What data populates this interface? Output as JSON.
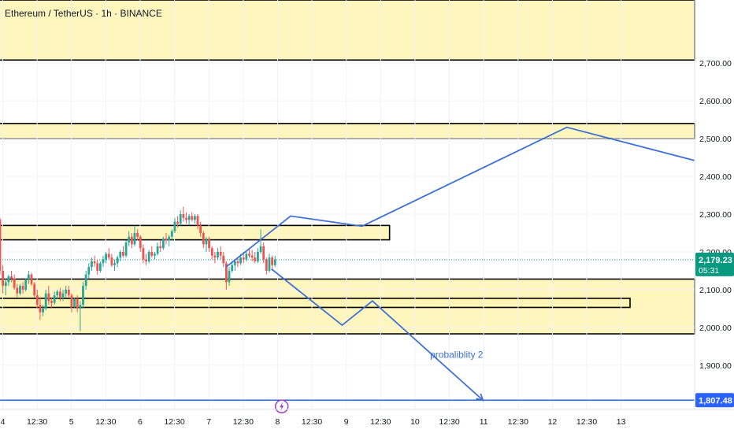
{
  "header": {
    "title": "Ethereum / TetherUS · 1h · BINANCE"
  },
  "chart_data": {
    "type": "candlestick",
    "title": "Ethereum / TetherUS · 1h · BINANCE",
    "symbol": "Ethereum / TetherUS",
    "interval": "1h",
    "exchange": "BINANCE",
    "ylim": [
      1783,
      2867
    ],
    "y_ticks": [
      {
        "value": 2700,
        "label": "2,700.00"
      },
      {
        "value": 2600,
        "label": "2,600.00"
      },
      {
        "value": 2500,
        "label": "2,500.00"
      },
      {
        "value": 2400,
        "label": "2,400.00"
      },
      {
        "value": 2300,
        "label": "2,300.00"
      },
      {
        "value": 2200,
        "label": "2,200.00"
      },
      {
        "value": 2100,
        "label": "2,100.00"
      },
      {
        "value": 2000,
        "label": "2,000.00"
      },
      {
        "value": 1900,
        "label": "1,900.00"
      }
    ],
    "x_ticks": [
      {
        "day": 4.0,
        "label": "4"
      },
      {
        "day": 4.5,
        "label": "12:30"
      },
      {
        "day": 5.0,
        "label": "5"
      },
      {
        "day": 5.5,
        "label": "12:30"
      },
      {
        "day": 6.0,
        "label": "6"
      },
      {
        "day": 6.5,
        "label": "12:30"
      },
      {
        "day": 7.0,
        "label": "7"
      },
      {
        "day": 7.5,
        "label": "12:30"
      },
      {
        "day": 8.0,
        "label": "8"
      },
      {
        "day": 8.5,
        "label": "12:30"
      },
      {
        "day": 9.0,
        "label": "9"
      },
      {
        "day": 9.5,
        "label": "12:30"
      },
      {
        "day": 10.0,
        "label": "10"
      },
      {
        "day": 10.5,
        "label": "12:30"
      },
      {
        "day": 11.0,
        "label": "11"
      },
      {
        "day": 11.5,
        "label": "12:30"
      },
      {
        "day": 12.0,
        "label": "12"
      },
      {
        "day": 12.5,
        "label": "12:30"
      },
      {
        "day": 13.0,
        "label": "13"
      }
    ],
    "x_range_days": [
      3.96,
      14.07
    ],
    "current_price": {
      "label": "2,179.23",
      "countdown": "05:31",
      "value": 2179.23,
      "color": "#089981"
    },
    "level_line": {
      "label": "1,807.48",
      "value": 1807.48,
      "color": "#2962ff"
    },
    "zones": [
      {
        "top": 2867,
        "bottom": 2708,
        "day_end": 14.07
      },
      {
        "top": 2540,
        "bottom": 2500,
        "day_end": 14.07
      },
      {
        "top": 2270,
        "bottom": 2232,
        "day_end": 9.63
      },
      {
        "top": 2128,
        "bottom": 1983,
        "day_end": 14.07
      },
      {
        "top": 2077,
        "bottom": 2053,
        "day_end": 13.13
      }
    ],
    "projection_lines": [
      {
        "points": [
          [
            7.25,
            2160
          ],
          [
            8.19,
            2295
          ],
          [
            9.23,
            2268
          ],
          [
            12.21,
            2530
          ],
          [
            14.07,
            2442
          ]
        ]
      },
      {
        "points": [
          [
            7.91,
            2155
          ],
          [
            8.94,
            2006
          ],
          [
            9.38,
            2070
          ],
          [
            10.99,
            1807
          ]
        ],
        "arrow": true
      }
    ],
    "annotations": [
      {
        "text": "probaliblity 2",
        "day": 10.22,
        "value": 1920
      }
    ],
    "candles": {
      "start_day": 3.96,
      "step_days": 0.0417,
      "bull_color": "#26a69a",
      "bear_color": "#ef5350",
      "ohlc": [
        [
          2285,
          2290,
          2140,
          2150
        ],
        [
          2150,
          2165,
          2090,
          2110
        ],
        [
          2110,
          2130,
          2085,
          2120
        ],
        [
          2120,
          2140,
          2110,
          2135
        ],
        [
          2135,
          2150,
          2120,
          2130
        ],
        [
          2130,
          2140,
          2100,
          2105
        ],
        [
          2105,
          2115,
          2080,
          2090
        ],
        [
          2090,
          2115,
          2085,
          2110
        ],
        [
          2110,
          2120,
          2090,
          2100
        ],
        [
          2100,
          2130,
          2095,
          2125
        ],
        [
          2125,
          2150,
          2115,
          2140
        ],
        [
          2140,
          2145,
          2110,
          2115
        ],
        [
          2115,
          2120,
          2080,
          2085
        ],
        [
          2085,
          2100,
          2050,
          2060
        ],
        [
          2060,
          2080,
          2020,
          2040
        ],
        [
          2040,
          2060,
          2030,
          2050
        ],
        [
          2050,
          2100,
          2045,
          2090
        ],
        [
          2090,
          2110,
          2060,
          2070
        ],
        [
          2070,
          2080,
          2050,
          2065
        ],
        [
          2065,
          2095,
          2060,
          2085
        ],
        [
          2085,
          2100,
          2075,
          2095
        ],
        [
          2095,
          2105,
          2070,
          2080
        ],
        [
          2080,
          2100,
          2070,
          2090
        ],
        [
          2090,
          2110,
          2080,
          2100
        ],
        [
          2100,
          2110,
          2080,
          2085
        ],
        [
          2085,
          2090,
          2040,
          2055
        ],
        [
          2055,
          2080,
          2050,
          2075
        ],
        [
          2075,
          2085,
          2040,
          2050
        ],
        [
          2050,
          2070,
          1990,
          2060
        ],
        [
          2060,
          2120,
          2050,
          2110
        ],
        [
          2110,
          2150,
          2100,
          2140
        ],
        [
          2140,
          2170,
          2130,
          2160
        ],
        [
          2160,
          2185,
          2150,
          2175
        ],
        [
          2175,
          2190,
          2160,
          2170
        ],
        [
          2170,
          2180,
          2140,
          2150
        ],
        [
          2150,
          2175,
          2145,
          2170
        ],
        [
          2170,
          2190,
          2160,
          2180
        ],
        [
          2180,
          2200,
          2170,
          2195
        ],
        [
          2195,
          2210,
          2180,
          2185
        ],
        [
          2185,
          2195,
          2160,
          2165
        ],
        [
          2165,
          2180,
          2150,
          2170
        ],
        [
          2170,
          2190,
          2160,
          2185
        ],
        [
          2185,
          2205,
          2175,
          2200
        ],
        [
          2200,
          2215,
          2185,
          2190
        ],
        [
          2190,
          2230,
          2185,
          2225
        ],
        [
          2225,
          2255,
          2215,
          2240
        ],
        [
          2240,
          2250,
          2210,
          2220
        ],
        [
          2220,
          2270,
          2215,
          2250
        ],
        [
          2250,
          2260,
          2230,
          2240
        ],
        [
          2240,
          2245,
          2200,
          2210
        ],
        [
          2210,
          2220,
          2170,
          2180
        ],
        [
          2180,
          2195,
          2165,
          2175
        ],
        [
          2175,
          2205,
          2170,
          2200
        ],
        [
          2200,
          2215,
          2185,
          2190
        ],
        [
          2190,
          2200,
          2180,
          2195
        ],
        [
          2195,
          2225,
          2190,
          2215
        ],
        [
          2215,
          2230,
          2200,
          2210
        ],
        [
          2210,
          2240,
          2205,
          2235
        ],
        [
          2235,
          2250,
          2220,
          2230
        ],
        [
          2230,
          2245,
          2215,
          2240
        ],
        [
          2240,
          2260,
          2230,
          2255
        ],
        [
          2255,
          2290,
          2250,
          2280
        ],
        [
          2280,
          2295,
          2265,
          2275
        ],
        [
          2275,
          2310,
          2270,
          2300
        ],
        [
          2300,
          2320,
          2280,
          2290
        ],
        [
          2290,
          2305,
          2275,
          2285
        ],
        [
          2285,
          2300,
          2270,
          2295
        ],
        [
          2295,
          2305,
          2280,
          2285
        ],
        [
          2285,
          2300,
          2275,
          2295
        ],
        [
          2295,
          2300,
          2260,
          2270
        ],
        [
          2270,
          2280,
          2240,
          2250
        ],
        [
          2250,
          2255,
          2210,
          2220
        ],
        [
          2220,
          2240,
          2200,
          2235
        ],
        [
          2235,
          2240,
          2200,
          2210
        ],
        [
          2210,
          2215,
          2180,
          2190
        ],
        [
          2190,
          2200,
          2170,
          2185
        ],
        [
          2185,
          2210,
          2180,
          2200
        ],
        [
          2200,
          2215,
          2180,
          2190
        ],
        [
          2190,
          2200,
          2160,
          2170
        ],
        [
          2170,
          2175,
          2100,
          2120
        ],
        [
          2120,
          2160,
          2110,
          2150
        ],
        [
          2150,
          2175,
          2145,
          2165
        ],
        [
          2165,
          2180,
          2150,
          2175
        ],
        [
          2175,
          2185,
          2160,
          2170
        ],
        [
          2170,
          2195,
          2165,
          2185
        ],
        [
          2185,
          2200,
          2170,
          2180
        ],
        [
          2180,
          2200,
          2175,
          2195
        ],
        [
          2195,
          2210,
          2185,
          2190
        ],
        [
          2190,
          2205,
          2175,
          2185
        ],
        [
          2185,
          2200,
          2170,
          2175
        ],
        [
          2175,
          2210,
          2170,
          2200
        ],
        [
          2200,
          2260,
          2195,
          2215
        ],
        [
          2215,
          2225,
          2170,
          2180
        ],
        [
          2180,
          2185,
          2140,
          2150
        ],
        [
          2150,
          2195,
          2145,
          2185
        ],
        [
          2185,
          2190,
          2150,
          2165
        ],
        [
          2165,
          2190,
          2160,
          2180
        ]
      ]
    }
  }
}
